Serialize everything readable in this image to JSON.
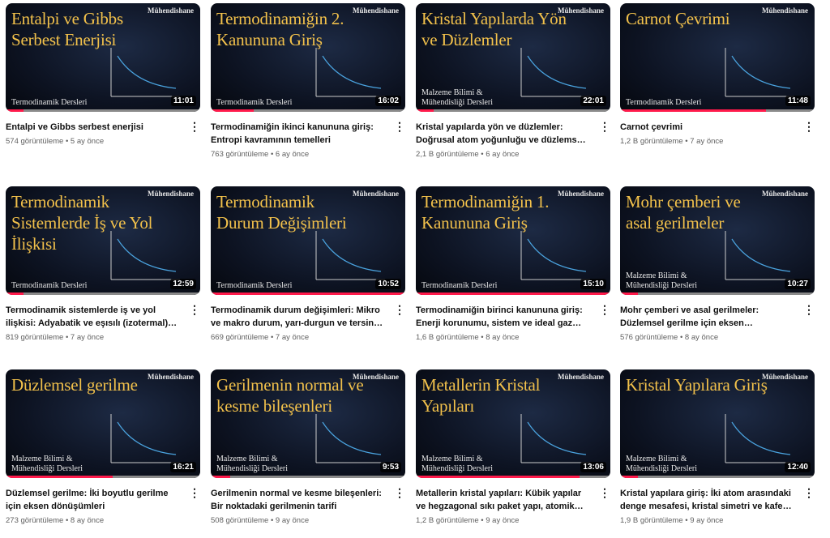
{
  "brand": "Mühendishane",
  "accent_color": "#ff1a4b",
  "videos": [
    {
      "thumb_title": "Entalpi ve Gibbs\nSerbest Enerjisi",
      "series": "Termodinamik Dersleri",
      "duration": "11:01",
      "progress": 0.09,
      "title": "Entalpi ve Gibbs serbest enerjisi",
      "views": "574 görüntüleme",
      "age": "5 ay önce"
    },
    {
      "thumb_title": "Termodinamiğin 2.\nKanununa Giriş",
      "series": "Termodinamik Dersleri",
      "duration": "16:02",
      "progress": 0.22,
      "title": "Termodinamiğin ikinci kanununa giriş: Entropi kavramının temelleri",
      "views": "763 görüntüleme",
      "age": "6 ay önce"
    },
    {
      "thumb_title": "Kristal Yapılarda Yön\nve Düzlemler",
      "series": "Malzeme Bilimi &\nMühendisliği Dersleri",
      "duration": "22:01",
      "progress": 0.09,
      "title": "Kristal yapılarda yön ve düzlemler: Doğrusal atom yoğunluğu ve düzlemsel atom yoğunluğu",
      "views": "2,1 B görüntüleme",
      "age": "6 ay önce"
    },
    {
      "thumb_title": "Carnot Çevrimi",
      "series": "Termodinamik Dersleri",
      "duration": "11:48",
      "progress": 0.75,
      "title": "Carnot çevrimi",
      "views": "1,2 B görüntüleme",
      "age": "7 ay önce"
    },
    {
      "thumb_title": "Termodinamik\nSistemlerde İş ve Yol\nİlişkisi",
      "series": "Termodinamik Dersleri",
      "duration": "12:59",
      "progress": 0.09,
      "title": "Termodinamik sistemlerde iş ve yol ilişkisi: Adyabatik ve eşısılı (izotermal) süreçler",
      "views": "819 görüntüleme",
      "age": "7 ay önce"
    },
    {
      "thumb_title": "Termodinamik\nDurum Değişimleri",
      "series": "Termodinamik Dersleri",
      "duration": "10:52",
      "progress": 1.0,
      "title": "Termodinamik durum değişimleri: Mikro ve makro durum, yarı-durgun ve tersinir süreçler",
      "views": "669 görüntüleme",
      "age": "7 ay önce"
    },
    {
      "thumb_title": "Termodinamiğin 1.\nKanununa Giriş",
      "series": "Termodinamik Dersleri",
      "duration": "15:10",
      "progress": 1.0,
      "title": "Termodinamiğin birinci kanununa giriş: Enerji korunumu, sistem ve ideal gaz kavramları",
      "views": "1,6 B görüntüleme",
      "age": "8 ay önce"
    },
    {
      "thumb_title": "Mohr çemberi ve\nasal gerilmeler",
      "series": "Malzeme Bilimi &\nMühendisliği Dersleri",
      "duration": "10:27",
      "progress": 0.09,
      "title": "Mohr çemberi ve asal gerilmeler: Düzlemsel gerilme için eksen dönüşümleri",
      "views": "576 görüntüleme",
      "age": "8 ay önce"
    },
    {
      "thumb_title": "Düzlemsel gerilme",
      "series": "Malzeme Bilimi &\nMühendisliği Dersleri",
      "duration": "16:21",
      "progress": 0.55,
      "title": "Düzlemsel gerilme: İki boyutlu gerilme için eksen dönüşümleri",
      "views": "273 görüntüleme",
      "age": "8 ay önce"
    },
    {
      "thumb_title": "Gerilmenin normal ve\nkesme bileşenleri",
      "series": "Malzeme Bilimi &\nMühendisliği Dersleri",
      "duration": "9:53",
      "progress": 0.1,
      "title": "Gerilmenin normal ve kesme bileşenleri: Bir noktadaki gerilmenin tarifi",
      "views": "508 görüntüleme",
      "age": "9 ay önce"
    },
    {
      "thumb_title": "Metallerin Kristal\nYapıları",
      "series": "Malzeme Bilimi &\nMühendisliği Dersleri",
      "duration": "13:06",
      "progress": 0.84,
      "title": "Metallerin kristal yapıları: Kübik yapılar ve hegzagonal sıkı paket yapı, atomik dolgu faktörü",
      "views": "1,2 B görüntüleme",
      "age": "9 ay önce"
    },
    {
      "thumb_title": "Kristal Yapılara Giriş",
      "series": "Malzeme Bilimi &\nMühendisliği Dersleri",
      "duration": "12:40",
      "progress": 0.09,
      "title": "Kristal yapılara giriş: İki atom arasındaki denge mesafesi, kristal simetri ve kafes yapıları",
      "views": "1,9 B görüntüleme",
      "age": "9 ay önce"
    }
  ]
}
